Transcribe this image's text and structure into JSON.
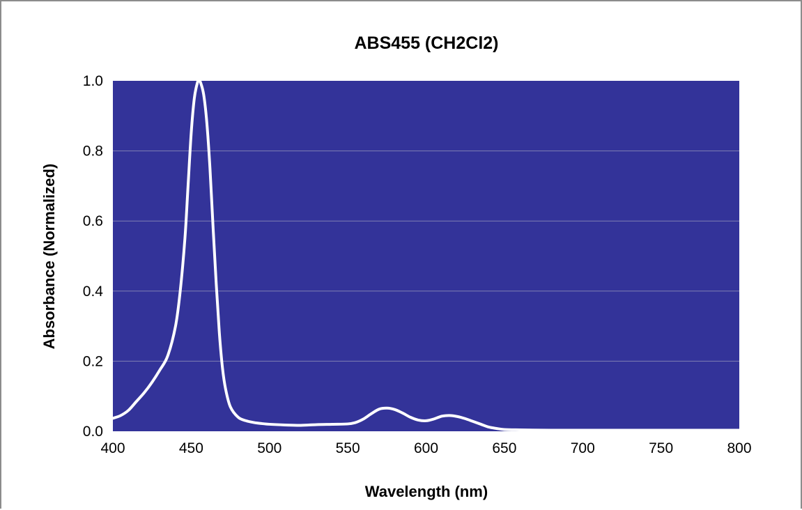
{
  "chart_data": {
    "type": "line",
    "title": "ABS455 (CH2Cl2)",
    "xlabel": "Wavelength (nm)",
    "ylabel": "Absorbance  (Normalized)",
    "xlim": [
      400,
      800
    ],
    "ylim": [
      0,
      1.0
    ],
    "x_ticks": [
      "400",
      "450",
      "500",
      "550",
      "600",
      "650",
      "700",
      "750",
      "800"
    ],
    "y_ticks": [
      "0.0",
      "0.2",
      "0.4",
      "0.6",
      "0.8",
      "1.0"
    ],
    "grid": "horizontal",
    "legend": "none",
    "colors": {
      "plot_background": "#333399",
      "line": "#ffffff",
      "gridline": "#8080b3",
      "frame": "#8c8c8c"
    },
    "series": [
      {
        "x": [
          400,
          405,
          410,
          415,
          420,
          425,
          430,
          435,
          440,
          443,
          446,
          448,
          450,
          452,
          454,
          455,
          456,
          458,
          460,
          462,
          464,
          466,
          468,
          470,
          472,
          475,
          480,
          485,
          490,
          495,
          500,
          510,
          520,
          530,
          540,
          550,
          555,
          560,
          565,
          570,
          575,
          580,
          585,
          590,
          595,
          600,
          605,
          610,
          615,
          620,
          625,
          630,
          635,
          640,
          645,
          650,
          660,
          680,
          700,
          750,
          800
        ],
        "y": [
          0.037,
          0.045,
          0.06,
          0.085,
          0.11,
          0.14,
          0.175,
          0.215,
          0.3,
          0.4,
          0.55,
          0.7,
          0.85,
          0.95,
          0.995,
          1.0,
          0.995,
          0.96,
          0.88,
          0.75,
          0.58,
          0.42,
          0.28,
          0.18,
          0.12,
          0.07,
          0.04,
          0.03,
          0.025,
          0.022,
          0.02,
          0.018,
          0.017,
          0.019,
          0.02,
          0.021,
          0.025,
          0.035,
          0.05,
          0.063,
          0.066,
          0.062,
          0.052,
          0.04,
          0.032,
          0.03,
          0.035,
          0.043,
          0.045,
          0.042,
          0.036,
          0.028,
          0.02,
          0.012,
          0.008,
          0.005,
          0.004,
          0.003,
          0.003,
          0.003,
          0.003
        ]
      }
    ]
  }
}
